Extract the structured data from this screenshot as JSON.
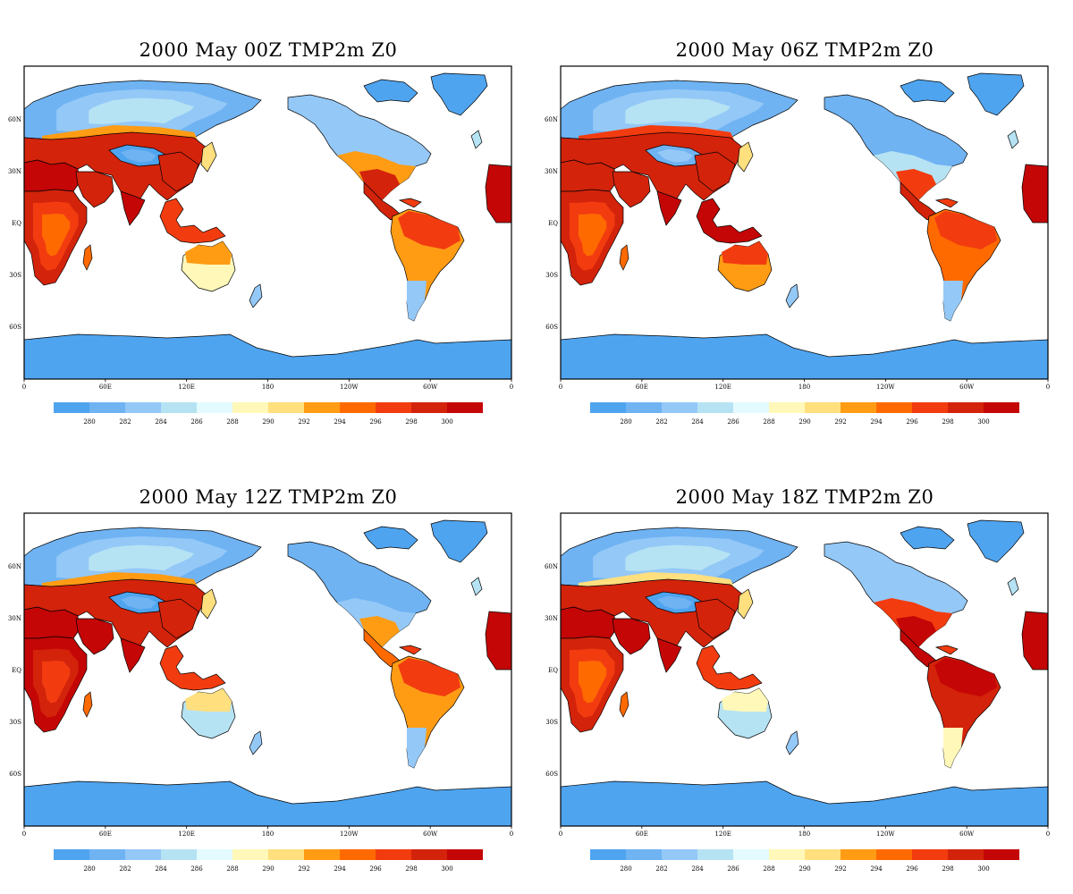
{
  "colors": {
    "ocean": "#ffffff",
    "c0": "#4fa4ef",
    "c1": "#6fb3f3",
    "c2": "#94c8f7",
    "c3": "#b6e3f3",
    "c4": "#e3fbff",
    "c5": "#fff8b9",
    "c6": "#ffdf7e",
    "c7": "#ff9c14",
    "c8": "#ff6a00",
    "c9": "#f23c10",
    "c10": "#d3230b",
    "c11": "#c40606"
  },
  "legend": {
    "labels": [
      "280",
      "282",
      "284",
      "286",
      "288",
      "290",
      "292",
      "294",
      "296",
      "298",
      "300"
    ],
    "colors": [
      "#4fa4ef",
      "#6fb3f3",
      "#94c8f7",
      "#b6e3f3",
      "#e3fbff",
      "#fff8b9",
      "#ffdf7e",
      "#ff9c14",
      "#ff6a00",
      "#f23c10",
      "#d3230b",
      "#c40606"
    ]
  },
  "axes": {
    "lon_labels": [
      "0",
      "60E",
      "120E",
      "180",
      "120W",
      "60W",
      "0"
    ],
    "lat_labels": [
      "60N",
      "30N",
      "EQ",
      "30S",
      "60S"
    ]
  },
  "panels": [
    {
      "title": "2000 May  00Z TMP2m Z0",
      "hour": "00Z",
      "regions": {
        "africa": 10,
        "sahara": 11,
        "arabia": 10,
        "india": 11,
        "china": 10,
        "siberia_south": 7,
        "central_asia": 10,
        "tibet": 0,
        "sea": 9,
        "australia_north": 7,
        "australia_south": 5,
        "n_america_north": 2,
        "n_america_mid": 7,
        "n_america_south": 10,
        "mexico": 10,
        "s_america_north": 9,
        "s_america_mid": 7,
        "s_america_south": 2,
        "east_sahara": 11
      }
    },
    {
      "title": "2000  May 06Z TMP2m Z0",
      "hour": "06Z",
      "regions": {
        "africa": 10,
        "sahara": 10,
        "arabia": 10,
        "india": 11,
        "china": 10,
        "siberia_south": 9,
        "central_asia": 10,
        "tibet": 1,
        "sea": 11,
        "australia_north": 9,
        "australia_south": 7,
        "n_america_north": 1,
        "n_america_mid": 3,
        "n_america_south": 9,
        "mexico": 10,
        "s_america_north": 9,
        "s_america_mid": 8,
        "s_america_south": 2,
        "east_sahara": 11
      }
    },
    {
      "title": "2000  May 12Z TMP2m Z0",
      "hour": "12Z",
      "regions": {
        "africa": 11,
        "sahara": 11,
        "arabia": 11,
        "india": 11,
        "china": 10,
        "siberia_south": 7,
        "central_asia": 10,
        "tibet": 0,
        "sea": 9,
        "australia_north": 6,
        "australia_south": 3,
        "n_america_north": 1,
        "n_america_mid": 2,
        "n_america_south": 7,
        "mexico": 8,
        "s_america_north": 9,
        "s_america_mid": 7,
        "s_america_south": 2,
        "east_sahara": 11
      }
    },
    {
      "title": "2000  May 18Z TMP2m Z0",
      "hour": "18Z",
      "regions": {
        "africa": 10,
        "sahara": 11,
        "arabia": 11,
        "india": 11,
        "china": 10,
        "siberia_south": 6,
        "central_asia": 10,
        "tibet": 0,
        "sea": 9,
        "australia_north": 5,
        "australia_south": 3,
        "n_america_north": 2,
        "n_america_mid": 9,
        "n_america_south": 11,
        "mexico": 11,
        "s_america_north": 11,
        "s_america_mid": 10,
        "s_america_south": 5,
        "east_sahara": 11
      }
    }
  ]
}
